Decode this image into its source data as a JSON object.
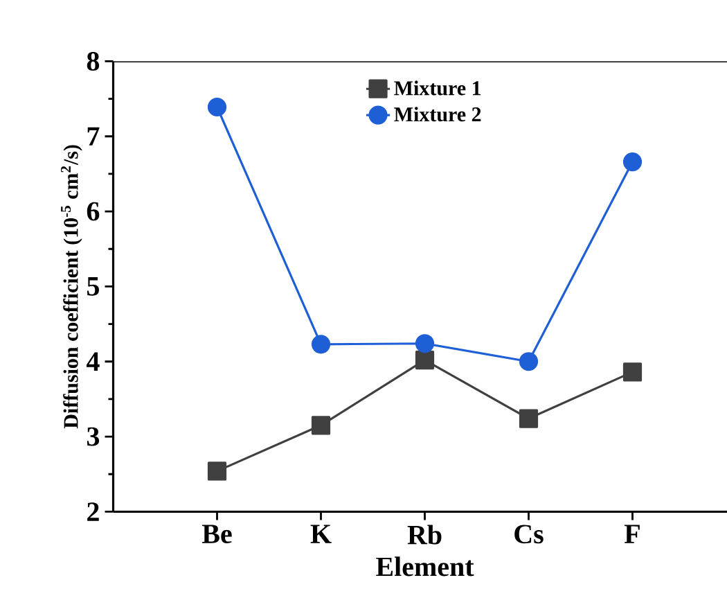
{
  "chart_data": {
    "type": "line",
    "xlabel": "Element",
    "ylabel": "Diffusion coefficient (10$^{-5}$ cm$^{2}$/s)",
    "categories": [
      "Be",
      "K",
      "Rb",
      "Cs",
      "F"
    ],
    "series": [
      {
        "name": "Mixture 1",
        "color": "#404040",
        "marker": "square",
        "values": [
          2.54,
          3.15,
          4.02,
          3.24,
          3.86
        ]
      },
      {
        "name": "Mixture 2",
        "color": "#1f5fd6",
        "marker": "circle",
        "values": [
          7.39,
          4.23,
          4.24,
          4.0,
          6.66
        ]
      }
    ],
    "ylim": [
      2,
      8
    ],
    "yticks": [
      2,
      3,
      4,
      5,
      6,
      7,
      8
    ],
    "legend": "top",
    "grid": false,
    "line_style": "solid"
  }
}
